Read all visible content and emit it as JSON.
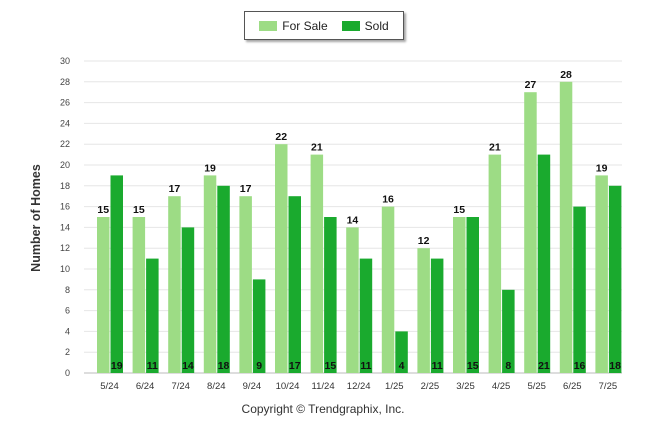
{
  "chart_data": {
    "type": "bar",
    "categories": [
      "5/24",
      "6/24",
      "7/24",
      "8/24",
      "9/24",
      "10/24",
      "11/24",
      "12/24",
      "1/25",
      "2/25",
      "3/25",
      "4/25",
      "5/25",
      "6/25",
      "7/25"
    ],
    "series": [
      {
        "name": "For Sale",
        "color": "#9ddc85",
        "values": [
          15,
          15,
          17,
          19,
          17,
          22,
          21,
          14,
          16,
          12,
          15,
          21,
          27,
          28,
          19
        ]
      },
      {
        "name": "Sold",
        "color": "#1aaa2e",
        "values": [
          19,
          11,
          14,
          18,
          9,
          17,
          15,
          11,
          4,
          11,
          15,
          8,
          21,
          16,
          18
        ]
      }
    ],
    "ylabel": "Number of Homes",
    "xlabel": "",
    "ylim": [
      0,
      30
    ],
    "yticks": [
      0,
      2,
      4,
      6,
      8,
      10,
      12,
      14,
      16,
      18,
      20,
      22,
      24,
      26,
      28,
      30
    ],
    "grid": true,
    "legend_position": "top-center"
  },
  "footer": {
    "copyright": "Copyright © Trendgraphix, Inc."
  }
}
